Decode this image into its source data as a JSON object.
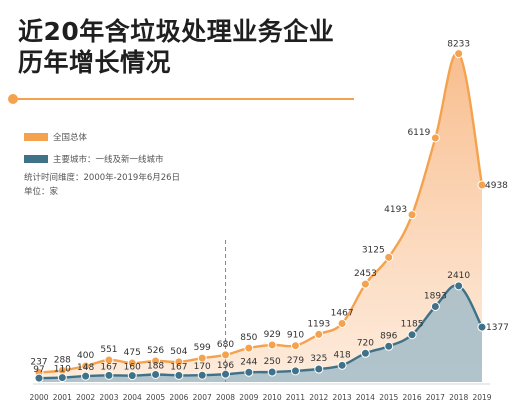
{
  "title_line1": "近20年含垃圾处理业务企业",
  "title_line2": "历年增长情况",
  "legend": [
    {
      "label": "全国总体",
      "color": "#f4a24e"
    },
    {
      "label": "主要城市：一线及新一线城市",
      "color": "#3f7288"
    }
  ],
  "notes": [
    "统计时间维度：2000年-2019年6月26日",
    "单位：家"
  ],
  "chart_data": {
    "type": "area",
    "x": [
      "2000",
      "2001",
      "2002",
      "2003",
      "2004",
      "2005",
      "2006",
      "2007",
      "2008",
      "2009",
      "2010",
      "2011",
      "2012",
      "2013",
      "2014",
      "2015",
      "2016",
      "2017",
      "2018",
      "2019"
    ],
    "series": [
      {
        "name": "全国总体",
        "color": "#f4a24e",
        "values": [
          237,
          288,
          400,
          551,
          475,
          526,
          504,
          599,
          680,
          850,
          929,
          910,
          1193,
          1467,
          2453,
          3125,
          4193,
          6119,
          8233,
          4938
        ]
      },
      {
        "name": "主要城市：一线及新一线城市",
        "color": "#3f7288",
        "values": [
          97,
          110,
          148,
          167,
          160,
          188,
          167,
          170,
          196,
          244,
          250,
          279,
          325,
          418,
          720,
          896,
          1185,
          1893,
          2410,
          1377
        ]
      }
    ],
    "ylim": [
      0,
      8700
    ],
    "grid": false,
    "legend_position": "left",
    "annotations": [
      {
        "type": "dashed-vline",
        "x": "2008"
      }
    ]
  }
}
